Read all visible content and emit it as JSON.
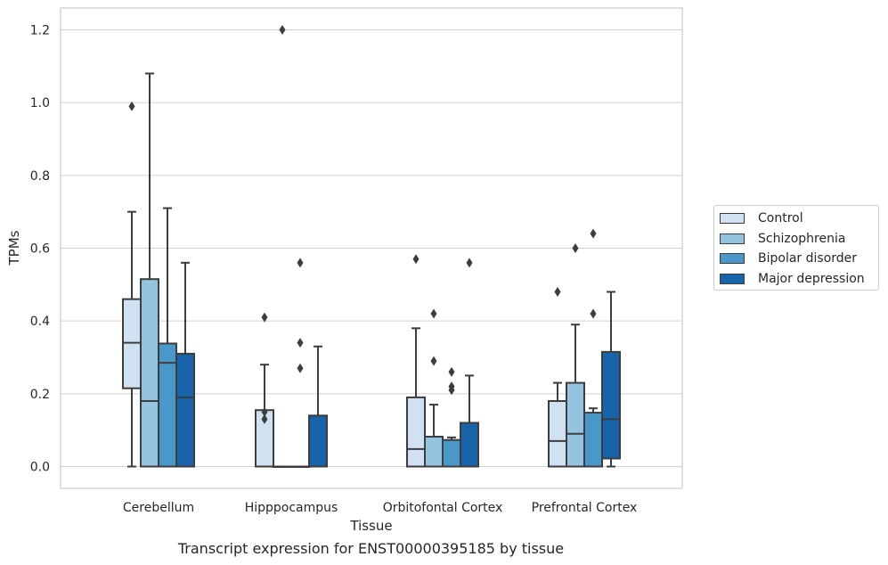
{
  "chart_data": {
    "type": "box",
    "xlabel": "Tissue",
    "ylabel": "TPMs",
    "ylim": [
      -0.06,
      1.26
    ],
    "yticks": [
      0.0,
      0.2,
      0.4,
      0.6,
      0.8,
      1.0,
      1.2
    ],
    "ytick_labels": [
      "0.0",
      "0.2",
      "0.4",
      "0.6",
      "0.8",
      "1.0",
      "1.2"
    ],
    "grid": "horizontal",
    "legend_position": "right",
    "categories": [
      "Cerebellum",
      "Hipppocampus",
      "Orbitofontal Cortex",
      "Prefrontal Cortex"
    ],
    "series": [
      {
        "name": "Control",
        "color": "#d0e1f2",
        "boxes": [
          {
            "q1": 0.215,
            "median": 0.34,
            "q3": 0.46,
            "whisker_low": 0.0,
            "whisker_high": 0.7,
            "outliers": [
              0.99
            ]
          },
          {
            "q1": 0.0,
            "median": 0.0,
            "q3": 0.155,
            "whisker_low": 0.0,
            "whisker_high": 0.28,
            "outliers": [
              0.41,
              0.15,
              0.13
            ]
          },
          {
            "q1": 0.0,
            "median": 0.048,
            "q3": 0.19,
            "whisker_low": 0.0,
            "whisker_high": 0.38,
            "outliers": [
              0.57
            ]
          },
          {
            "q1": 0.0,
            "median": 0.07,
            "q3": 0.18,
            "whisker_low": 0.0,
            "whisker_high": 0.23,
            "outliers": [
              0.48
            ]
          }
        ]
      },
      {
        "name": "Schizophrenia",
        "color": "#94c4df",
        "boxes": [
          {
            "q1": 0.0,
            "median": 0.18,
            "q3": 0.515,
            "whisker_low": 0.0,
            "whisker_high": 1.08,
            "outliers": []
          },
          {
            "q1": 0.0,
            "median": 0.0,
            "q3": 0.0,
            "whisker_low": 0.0,
            "whisker_high": 0.0,
            "outliers": [
              1.2
            ]
          },
          {
            "q1": 0.0,
            "median": 0.0,
            "q3": 0.082,
            "whisker_low": 0.0,
            "whisker_high": 0.17,
            "outliers": [
              0.42,
              0.29
            ]
          },
          {
            "q1": 0.0,
            "median": 0.09,
            "q3": 0.23,
            "whisker_low": 0.0,
            "whisker_high": 0.39,
            "outliers": [
              0.6
            ]
          }
        ]
      },
      {
        "name": "Bipolar disorder",
        "color": "#4a98c9",
        "boxes": [
          {
            "q1": 0.0,
            "median": 0.285,
            "q3": 0.338,
            "whisker_low": 0.0,
            "whisker_high": 0.71,
            "outliers": []
          },
          {
            "q1": 0.0,
            "median": 0.0,
            "q3": 0.0,
            "whisker_low": 0.0,
            "whisker_high": 0.0,
            "outliers": [
              0.56,
              0.34,
              0.27
            ]
          },
          {
            "q1": 0.0,
            "median": 0.0,
            "q3": 0.073,
            "whisker_low": 0.0,
            "whisker_high": 0.08,
            "outliers": [
              0.26,
              0.22,
              0.21
            ]
          },
          {
            "q1": 0.0,
            "median": 0.0,
            "q3": 0.148,
            "whisker_low": 0.0,
            "whisker_high": 0.16,
            "outliers": [
              0.64,
              0.42
            ]
          }
        ]
      },
      {
        "name": "Major depression",
        "color": "#1764ab",
        "boxes": [
          {
            "q1": 0.0,
            "median": 0.19,
            "q3": 0.31,
            "whisker_low": 0.0,
            "whisker_high": 0.56,
            "outliers": []
          },
          {
            "q1": 0.0,
            "median": 0.0,
            "q3": 0.14,
            "whisker_low": 0.0,
            "whisker_high": 0.33,
            "outliers": []
          },
          {
            "q1": 0.0,
            "median": 0.0,
            "q3": 0.12,
            "whisker_low": 0.0,
            "whisker_high": 0.25,
            "outliers": [
              0.56
            ]
          },
          {
            "q1": 0.022,
            "median": 0.13,
            "q3": 0.315,
            "whisker_low": 0.0,
            "whisker_high": 0.48,
            "outliers": []
          }
        ]
      }
    ]
  },
  "caption": "Transcript expression for ENST00000395185 by tissue"
}
